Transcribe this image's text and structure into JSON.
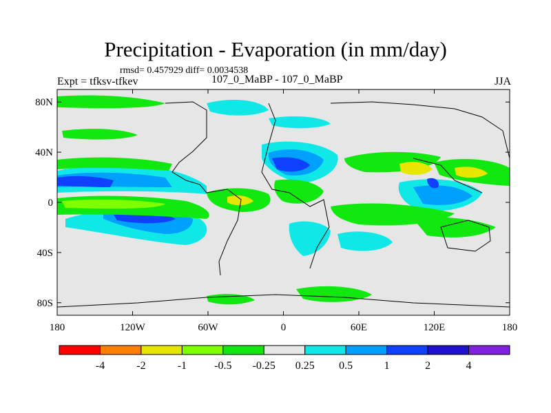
{
  "header": {
    "title": "Precipitation - Evaporation (in mm/day)",
    "stats": "rmsd= 0.457929 diff= 0.0034538",
    "experiment": "Expt = tfksv-tfkev",
    "period": "107_0_MaBP - 107_0_MaBP",
    "season": "JJA"
  },
  "map": {
    "lat_ticks": [
      {
        "label": "80N",
        "lat": 80
      },
      {
        "label": "40N",
        "lat": 40
      },
      {
        "label": "0",
        "lat": 0
      },
      {
        "label": "40S",
        "lat": -40
      },
      {
        "label": "80S",
        "lat": -80
      }
    ],
    "lon_ticks": [
      {
        "label": "180",
        "lon": -180
      },
      {
        "label": "120W",
        "lon": -120
      },
      {
        "label": "60W",
        "lon": -60
      },
      {
        "label": "0",
        "lon": 0
      },
      {
        "label": "60E",
        "lon": 60
      },
      {
        "label": "120E",
        "lon": 120
      },
      {
        "label": "180",
        "lon": 180
      }
    ]
  },
  "colorbar": {
    "levels": [
      "-4",
      "-2",
      "-1",
      "-0.5",
      "-0.25",
      "0.25",
      "0.5",
      "1",
      "2",
      "4"
    ],
    "colors": [
      "#ff0000",
      "#ff8000",
      "#e6e600",
      "#80ff00",
      "#10e810",
      "#e6e6e6",
      "#10e8e8",
      "#00a0ff",
      "#1040ff",
      "#2010d0",
      "#8020e0"
    ]
  },
  "colors": {
    "background": "#e6e6e6",
    "coastline": "#000000"
  }
}
